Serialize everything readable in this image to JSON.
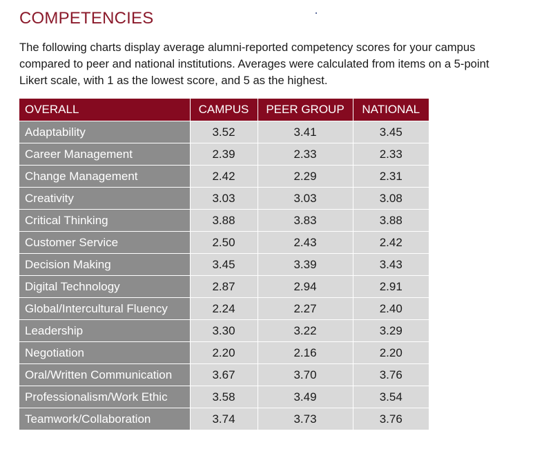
{
  "heading": "COMPETENCIES",
  "intro": {
    "line1": "The following charts display average alumni-reported competency scores for your campus",
    "line2": "compared to peer and national institutions. Averages were calculated from items on a 5-point",
    "line3": "Likert scale, with 1 as the lowest score, and 5 as the highest."
  },
  "table": {
    "headers": {
      "label": "OVERALL",
      "campus": "CAMPUS",
      "peer": "PEER GROUP",
      "national": "NATIONAL"
    },
    "rows": [
      {
        "label": "Adaptability",
        "campus": "3.52",
        "peer": "3.41",
        "national": "3.45"
      },
      {
        "label": "Career Management",
        "campus": "2.39",
        "peer": "2.33",
        "national": "2.33"
      },
      {
        "label": "Change Management",
        "campus": "2.42",
        "peer": "2.29",
        "national": "2.31"
      },
      {
        "label": "Creativity",
        "campus": "3.03",
        "peer": "3.03",
        "national": "3.08"
      },
      {
        "label": "Critical Thinking",
        "campus": "3.88",
        "peer": "3.83",
        "national": "3.88"
      },
      {
        "label": "Customer Service",
        "campus": "2.50",
        "peer": "2.43",
        "national": "2.42"
      },
      {
        "label": "Decision Making",
        "campus": "3.45",
        "peer": "3.39",
        "national": "3.43"
      },
      {
        "label": "Digital Technology",
        "campus": "2.87",
        "peer": "2.94",
        "national": "2.91"
      },
      {
        "label": "Global/Intercultural Fluency",
        "campus": "2.24",
        "peer": "2.27",
        "national": "2.40"
      },
      {
        "label": "Leadership",
        "campus": "3.30",
        "peer": "3.22",
        "national": "3.29"
      },
      {
        "label": "Negotiation",
        "campus": "2.20",
        "peer": "2.16",
        "national": "2.20"
      },
      {
        "label": "Oral/Written Communication",
        "campus": "3.67",
        "peer": "3.70",
        "national": "3.76"
      },
      {
        "label": "Professionalism/Work Ethic",
        "campus": "3.58",
        "peer": "3.49",
        "national": "3.54"
      },
      {
        "label": "Teamwork/Collaboration",
        "campus": "3.74",
        "peer": "3.73",
        "national": "3.76"
      }
    ]
  },
  "colors": {
    "heading": "#8b1a2b",
    "header_bg": "#850a20",
    "label_bg": "#8c8c8c",
    "value_bg": "#d9d9d9"
  }
}
